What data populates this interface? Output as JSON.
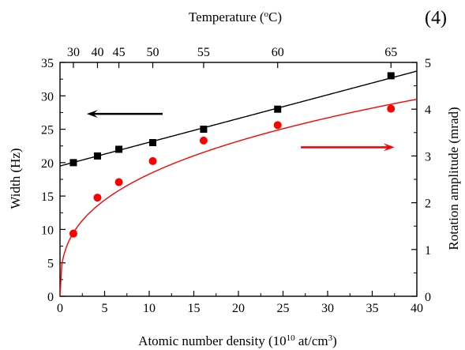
{
  "panel_label": "(4)",
  "chart_data": {
    "type": "scatter",
    "xlabel": "Atomic number density (10",
    "xlabel_sup1": "10",
    "xlabel_mid": " at/cm",
    "xlabel_sup2": "3",
    "xlabel_end": ")",
    "xlabel_full": "Atomic number density (10^10 at/cm^3)",
    "ylabel_left": "Width (Hz)",
    "ylabel_right": "Rotation amplitude (mrad)",
    "top_axis_label": "Temperature (oC)",
    "top_axis_label_main": "Temperature (",
    "top_axis_label_sup": "o",
    "top_axis_label_end": "C)",
    "xlim": [
      0,
      40
    ],
    "ylim_left": [
      0,
      35
    ],
    "ylim_right": [
      0,
      5
    ],
    "x_ticks": [
      0,
      5,
      10,
      15,
      20,
      25,
      30,
      35,
      40
    ],
    "y_left_ticks": [
      0,
      5,
      10,
      15,
      20,
      25,
      30,
      35
    ],
    "y_right_ticks": [
      0,
      1,
      2,
      3,
      4,
      5
    ],
    "top_ticks": [
      {
        "label": "30",
        "x": 1.5
      },
      {
        "label": "40",
        "x": 4.2
      },
      {
        "label": "45",
        "x": 6.6
      },
      {
        "label": "50",
        "x": 10.4
      },
      {
        "label": "55",
        "x": 16.1
      },
      {
        "label": "60",
        "x": 24.4
      },
      {
        "label": "65",
        "x": 37.1
      }
    ],
    "series": [
      {
        "axis": "left",
        "color": "#000000",
        "marker": "square",
        "x": [
          1.5,
          4.2,
          6.6,
          10.4,
          16.1,
          24.4,
          37.1
        ],
        "y": [
          20.0,
          21.0,
          22.0,
          23.0,
          25.0,
          28.0,
          33.0
        ]
      },
      {
        "axis": "right",
        "color": "#ff0000",
        "marker": "circle",
        "x": [
          1.5,
          4.2,
          6.6,
          10.4,
          16.1,
          24.4,
          37.1
        ],
        "y": [
          1.34,
          2.11,
          2.44,
          2.89,
          3.33,
          3.66,
          4.01
        ]
      }
    ],
    "fits": [
      {
        "axis": "left",
        "color": "#000000",
        "kind": "linear",
        "intercept": 19.5,
        "slope": 0.355
      },
      {
        "axis": "right",
        "color": "#ff0000",
        "kind": "sqrt-like",
        "a": 0.55,
        "b": 0.115
      }
    ],
    "arrows": [
      {
        "direction": "left",
        "color": "#000000",
        "x_from": 11.5,
        "x_to": 3.0,
        "y_left": 27.3
      },
      {
        "direction": "right",
        "color": "#ff0000",
        "x_from": 27.0,
        "x_to": 37.5,
        "y_left": 22.3
      }
    ],
    "grid": false
  }
}
